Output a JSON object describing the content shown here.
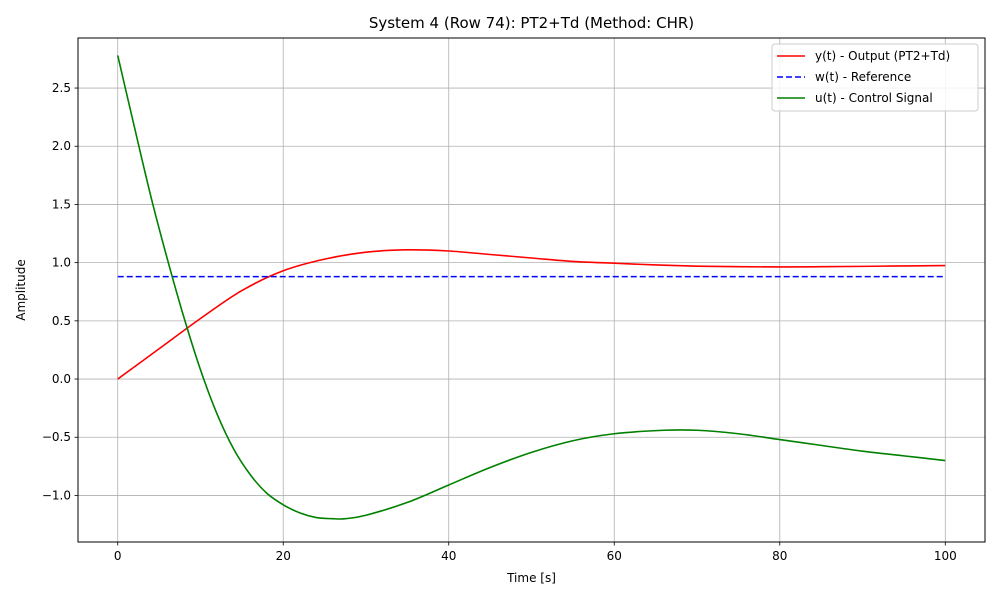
{
  "chart_data": {
    "type": "line",
    "title": "System 4 (Row 74): PT2+Td (Method: CHR)",
    "xlabel": "Time [s]",
    "ylabel": "Amplitude",
    "xlim": [
      -4.8,
      104.8
    ],
    "ylim": [
      -1.4,
      2.93
    ],
    "xticks": [
      0,
      20,
      40,
      60,
      80,
      100
    ],
    "xtick_labels": [
      "0",
      "20",
      "40",
      "60",
      "80",
      "100"
    ],
    "yticks": [
      -1.0,
      -0.5,
      0.0,
      0.5,
      1.0,
      1.5,
      2.0,
      2.5
    ],
    "ytick_labels": [
      "−1.0",
      "−0.5",
      "0.0",
      "0.5",
      "1.0",
      "1.5",
      "2.0",
      "2.5"
    ],
    "grid": true,
    "legend_position": "top-right",
    "series": [
      {
        "name": "y(t) - Output (PT2+Td)",
        "color": "#ff0000",
        "dash": "solid",
        "x": [
          0,
          5,
          10,
          15,
          20,
          25,
          30,
          35,
          40,
          45,
          50,
          55,
          60,
          65,
          70,
          75,
          80,
          85,
          90,
          95,
          100
        ],
        "y": [
          0.0,
          0.26,
          0.52,
          0.76,
          0.93,
          1.03,
          1.09,
          1.11,
          1.1,
          1.07,
          1.04,
          1.01,
          0.995,
          0.98,
          0.97,
          0.965,
          0.963,
          0.965,
          0.968,
          0.972,
          0.975
        ]
      },
      {
        "name": "w(t) - Reference",
        "color": "#0000ff",
        "dash": "dashed",
        "x": [
          0,
          100
        ],
        "y": [
          0.88,
          0.88
        ]
      },
      {
        "name": "u(t) - Control Signal",
        "color": "#008000",
        "dash": "solid",
        "x": [
          0,
          2,
          4,
          6,
          8,
          10,
          12,
          14,
          16,
          18,
          20,
          22,
          24,
          26,
          27.5,
          30,
          35,
          40,
          45,
          50,
          55,
          60,
          66,
          70,
          75,
          80,
          85,
          90,
          95,
          100
        ],
        "y": [
          2.78,
          2.17,
          1.57,
          1.03,
          0.53,
          0.08,
          -0.3,
          -0.6,
          -0.82,
          -0.98,
          -1.08,
          -1.15,
          -1.19,
          -1.2,
          -1.2,
          -1.17,
          -1.06,
          -0.91,
          -0.76,
          -0.63,
          -0.53,
          -0.47,
          -0.44,
          -0.44,
          -0.47,
          -0.52,
          -0.57,
          -0.62,
          -0.66,
          -0.7
        ]
      }
    ]
  }
}
